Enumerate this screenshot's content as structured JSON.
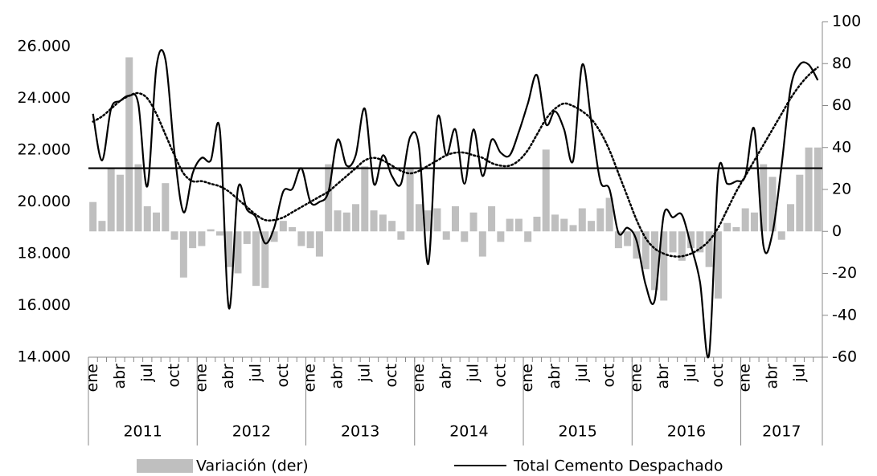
{
  "chart_data": {
    "type": "combo",
    "years": [
      "2011",
      "2012",
      "2013",
      "2014",
      "2015",
      "2016",
      "2017"
    ],
    "year_lengths": [
      12,
      12,
      12,
      12,
      12,
      12,
      9
    ],
    "categories": [
      "ene",
      null,
      null,
      "abr",
      null,
      null,
      "jul",
      null,
      null,
      "oct",
      null,
      null,
      "ene",
      null,
      null,
      "abr",
      null,
      null,
      "jul",
      null,
      null,
      "oct",
      null,
      null,
      "ene",
      null,
      null,
      "abr",
      null,
      null,
      "jul",
      null,
      null,
      "oct",
      null,
      null,
      "ene",
      null,
      null,
      "abr",
      null,
      null,
      "jul",
      null,
      null,
      "oct",
      null,
      null,
      "ene",
      null,
      null,
      "abr",
      null,
      null,
      "jul",
      null,
      null,
      "oct",
      null,
      null,
      "ene",
      null,
      null,
      "abr",
      null,
      null,
      "jul",
      null,
      null,
      "oct",
      null,
      null,
      "ene",
      null,
      null,
      "abr",
      null,
      null,
      "jul",
      null,
      null
    ],
    "series": [
      {
        "name": "Variación (der)",
        "kind": "bar",
        "axis": "y2",
        "color": "#bfbfbf",
        "values": [
          14,
          5,
          30,
          27,
          83,
          32,
          12,
          9,
          23,
          -4,
          -22,
          -8,
          -7,
          1,
          -2,
          -17,
          -20,
          -6,
          -26,
          -27,
          -5,
          5,
          2,
          -7,
          -8,
          -12,
          32,
          10,
          9,
          13,
          31,
          10,
          8,
          5,
          -4,
          30,
          13,
          10,
          11,
          -4,
          12,
          -5,
          9,
          -12,
          12,
          -5,
          6,
          6,
          -5,
          7,
          39,
          8,
          6,
          3,
          11,
          5,
          11,
          16,
          -8,
          -7,
          -13,
          -18,
          -28,
          -33,
          -10,
          -14,
          -8,
          -10,
          -17,
          -32,
          4,
          2,
          11,
          9,
          32,
          26,
          -4,
          13,
          27,
          40,
          40
        ]
      },
      {
        "name": "Total Cemento Despachado",
        "kind": "line",
        "color": "#000000",
        "values": [
          23400,
          21600,
          23600,
          23900,
          24100,
          23800,
          20600,
          25200,
          25500,
          21900,
          19600,
          21100,
          21700,
          21600,
          22800,
          15900,
          20500,
          19700,
          19400,
          18400,
          19000,
          20400,
          20500,
          21300,
          20000,
          20000,
          20400,
          22400,
          21400,
          21800,
          23600,
          20700,
          21800,
          21000,
          20700,
          22500,
          22100,
          17600,
          23200,
          21800,
          22800,
          20700,
          22800,
          21000,
          22400,
          21900,
          21800,
          22700,
          23800,
          24900,
          23000,
          23500,
          22800,
          21600,
          25300,
          23100,
          20800,
          20500,
          18800,
          19000,
          18500,
          16800,
          16200,
          19500,
          19400,
          19500,
          18300,
          16900,
          14100,
          21100,
          20700,
          20800,
          21000,
          22800,
          18300,
          18800,
          21400,
          24400,
          25300,
          25300,
          24700
        ]
      },
      {
        "kind": "dotted",
        "color": "#000000",
        "values": [
          23100,
          23300,
          23600,
          23900,
          24100,
          24200,
          24000,
          23400,
          22600,
          21800,
          21100,
          20800,
          20800,
          20700,
          20600,
          20400,
          20100,
          19800,
          19500,
          19300,
          19300,
          19400,
          19600,
          19800,
          20000,
          20200,
          20400,
          20700,
          21000,
          21300,
          21600,
          21700,
          21600,
          21400,
          21200,
          21100,
          21200,
          21400,
          21600,
          21800,
          21900,
          21900,
          21800,
          21700,
          21500,
          21400,
          21400,
          21600,
          22000,
          22600,
          23200,
          23600,
          23800,
          23700,
          23500,
          23200,
          22700,
          22000,
          21100,
          20200,
          19300,
          18600,
          18200,
          18000,
          17900,
          17900,
          18000,
          18200,
          18500,
          19000,
          19700,
          20400,
          21000,
          21600,
          22200,
          22800,
          23400,
          24000,
          24500,
          24900,
          25200
        ]
      }
    ],
    "reference_line": 21300,
    "ylim": [
      14000,
      26000
    ],
    "yticks": [
      {
        "value": 14000,
        "label": "14.000"
      },
      {
        "value": 16000,
        "label": "16.000"
      },
      {
        "value": 18000,
        "label": "18.000"
      },
      {
        "value": 20000,
        "label": "20.000"
      },
      {
        "value": 22000,
        "label": "22.000"
      },
      {
        "value": 24000,
        "label": "24.000"
      },
      {
        "value": 26000,
        "label": "26.000"
      }
    ],
    "y2lim": [
      -60,
      100
    ],
    "y2ticks": [
      -60,
      -40,
      -20,
      0,
      20,
      40,
      60,
      80,
      100
    ],
    "legend": "bottom"
  }
}
